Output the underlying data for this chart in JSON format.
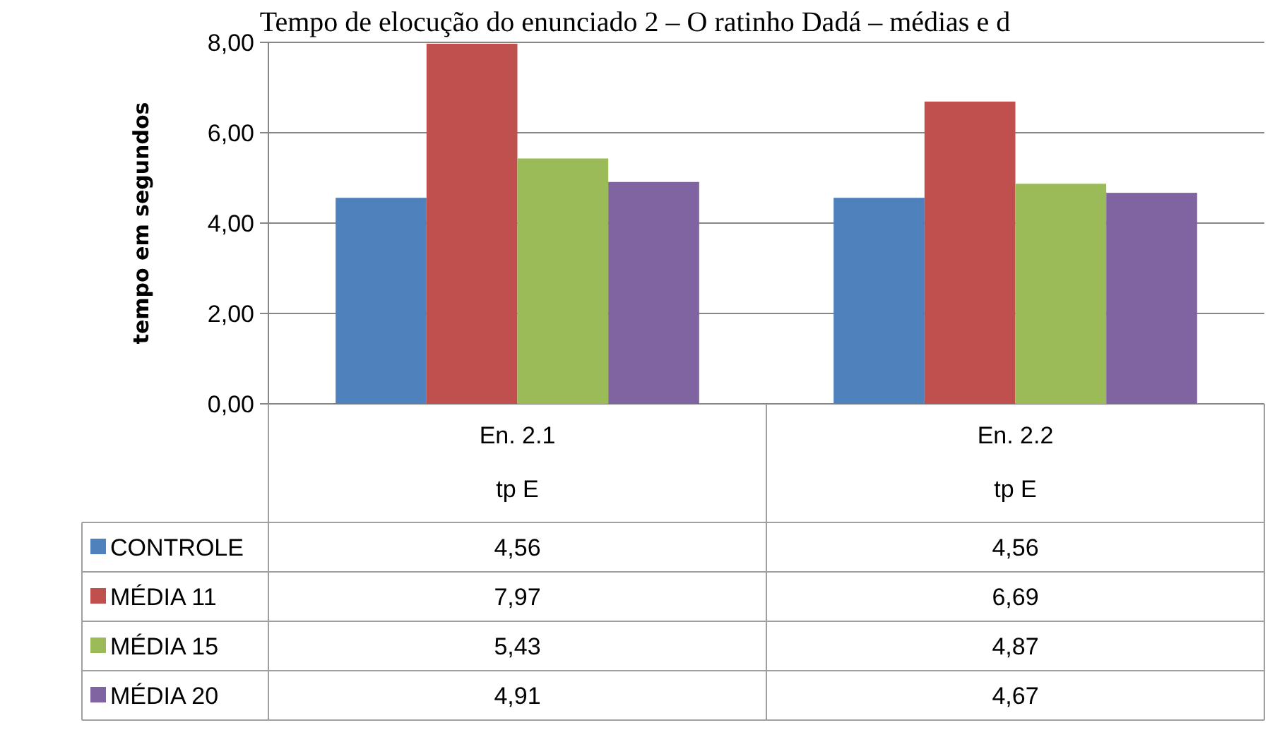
{
  "chart_data": {
    "type": "bar",
    "title": "Tempo de elocução do enunciado 2 – O ratinho Dadá – médias e d",
    "ylabel": "tempo em segundos",
    "categories": [
      "En. 2.1\ntp E",
      "En. 2.2\ntp E"
    ],
    "series": [
      {
        "name": "CONTROLE",
        "color": "#4f81bd",
        "values": [
          4.56,
          4.56
        ],
        "value_labels": [
          "4,56",
          "4,56"
        ]
      },
      {
        "name": "MÉDIA 11",
        "color": "#c0504d",
        "values": [
          7.97,
          6.69
        ],
        "value_labels": [
          "7,97",
          "6,69"
        ]
      },
      {
        "name": "MÉDIA 15",
        "color": "#9bbb59",
        "values": [
          5.43,
          4.87
        ],
        "value_labels": [
          "5,43",
          "4,87"
        ]
      },
      {
        "name": "MÉDIA 20",
        "color": "#8064a2",
        "values": [
          4.91,
          4.67
        ],
        "value_labels": [
          "4,91",
          "4,67"
        ]
      }
    ],
    "ylim": [
      0,
      8
    ],
    "yticks": [
      {
        "value": 0,
        "label": "0,00"
      },
      {
        "value": 2,
        "label": "2,00"
      },
      {
        "value": 4,
        "label": "4,00"
      },
      {
        "value": 6,
        "label": "6,00"
      },
      {
        "value": 8,
        "label": "8,00"
      }
    ],
    "grid": "y",
    "legend": "bottom left"
  }
}
